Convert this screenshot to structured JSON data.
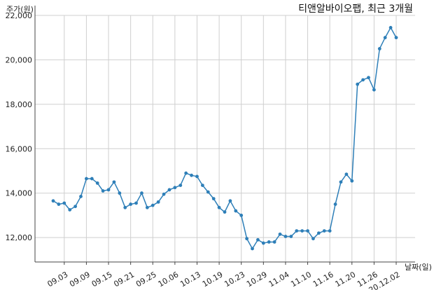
{
  "chart_data": {
    "type": "line",
    "title": "티앤알바이오팹, 최근 3개월",
    "ylabel": "주가(원)",
    "xlabel": "날짜(일)",
    "ylim": [
      10900,
      22000
    ],
    "yticks": [
      12000,
      14000,
      16000,
      18000,
      20000,
      22000
    ],
    "ytick_labels": [
      "12,000",
      "14,000",
      "16,000",
      "18,000",
      "20,000",
      "22,000"
    ],
    "xtick_labels": [
      "09.03",
      "09.09",
      "09.15",
      "09.21",
      "09.25",
      "10.06",
      "10.13",
      "10.19",
      "10.23",
      "10.29",
      "11.04",
      "11.10",
      "11.16",
      "11.20",
      "11.26",
      "20.12.02"
    ],
    "xtick_indices": [
      2,
      6,
      10,
      14,
      18,
      22,
      26,
      30,
      34,
      38,
      42,
      46,
      50,
      54,
      58,
      62
    ],
    "grid": true,
    "color": "#2e7fb8",
    "series": [
      {
        "values": [
          13650,
          13500,
          13550,
          13250,
          13400,
          13850,
          14650,
          14650,
          14450,
          14100,
          14150,
          14500,
          14000,
          13350,
          13500,
          13550,
          14000,
          13350,
          13450,
          13600,
          13950,
          14150,
          14250,
          14350,
          14900,
          14800,
          14750,
          14350,
          14050,
          13750,
          13350,
          13150,
          13650,
          13200,
          13000,
          11950,
          11500,
          11900,
          11750,
          11800,
          11800,
          12150,
          12050,
          12050,
          12300,
          12300,
          12300,
          11950,
          12200,
          12300,
          12300,
          13500,
          14500,
          14850,
          14550,
          18900,
          19100,
          19200,
          18650,
          20500,
          21000,
          21450,
          21000
        ]
      }
    ]
  }
}
